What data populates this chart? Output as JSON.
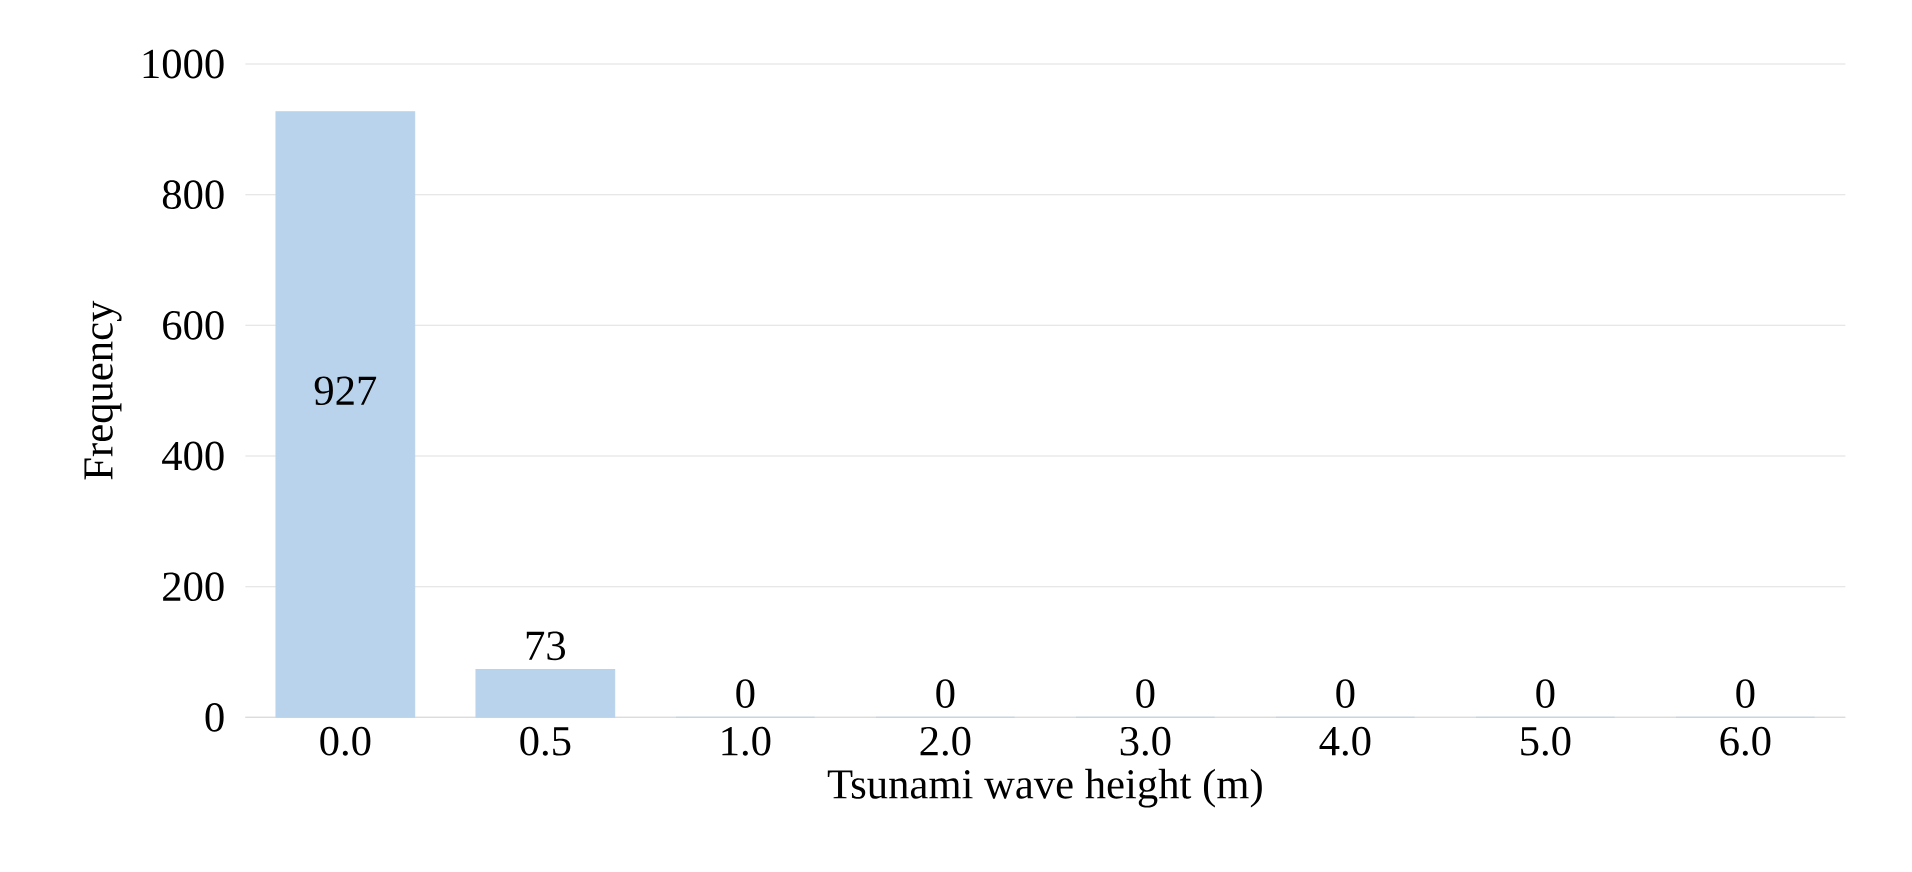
{
  "chart_data": {
    "type": "bar",
    "xlabel": "Tsunami wave height (m)",
    "ylabel": "Frequency",
    "categories": [
      "0.0",
      "0.5",
      "1.0",
      "2.0",
      "3.0",
      "4.0",
      "5.0",
      "6.0"
    ],
    "values": [
      927,
      73,
      0,
      0,
      0,
      0,
      0,
      0
    ],
    "color": "#b9d3ec",
    "ylim": [
      0,
      1000
    ],
    "yticks": [
      0,
      200,
      400,
      600,
      800,
      1000
    ],
    "grid": "y",
    "data_labels": true
  }
}
